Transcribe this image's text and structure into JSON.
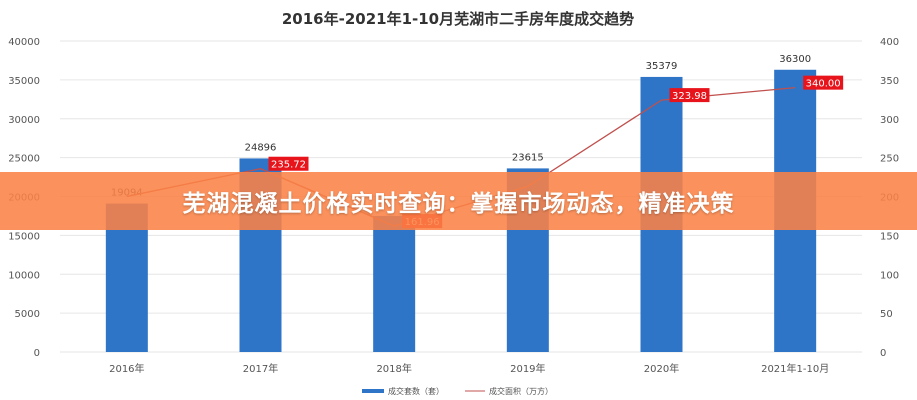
{
  "chart_data": {
    "type": "bar+line",
    "title": "2016年-2021年1-10月芜湖市二手房年度成交趋势",
    "categories": [
      "2016年",
      "2017年",
      "2018年",
      "2019年",
      "2020年",
      "2021年1-10月"
    ],
    "series": [
      {
        "name": "成交套数（套）",
        "type": "bar",
        "axis": "left",
        "color": "#2e75c8",
        "values": [
          19094,
          24896,
          17500,
          23615,
          35379,
          36300
        ],
        "labels": [
          "19094",
          "24896",
          null,
          "23615",
          "35379",
          "36300"
        ]
      },
      {
        "name": "成交面积（万方）",
        "type": "line",
        "axis": "right",
        "color": "#c0504d",
        "values": [
          200,
          235.72,
          161.96,
          213,
          323.98,
          340.0
        ],
        "labels": [
          null,
          "235.72",
          "161.96",
          null,
          "323.98",
          "340.00"
        ]
      }
    ],
    "yleft": {
      "lim": [
        0,
        40000
      ],
      "ticks": [
        "0",
        "5000",
        "10000",
        "15000",
        "20000",
        "25000",
        "30000",
        "35000",
        "40000"
      ]
    },
    "yright": {
      "lim": [
        0,
        400
      ],
      "ticks": [
        "0",
        "50",
        "100",
        "150",
        "200",
        "250",
        "300",
        "350",
        "400"
      ]
    },
    "grid": true,
    "legend": "bottom"
  },
  "banner": {
    "text": "芜湖混凝土价格实时查询：掌握市场动态，精准决策",
    "color": "#f98a4f"
  }
}
